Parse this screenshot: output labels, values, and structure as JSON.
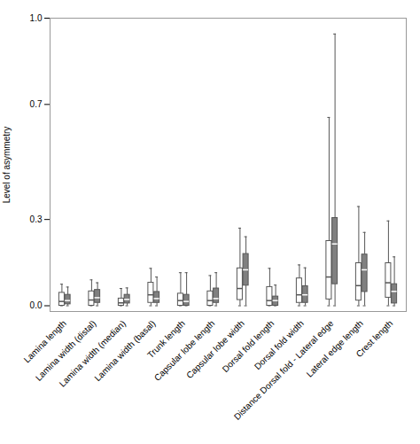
{
  "chart_data": {
    "type": "box",
    "ylabel": "Level of asymmetry",
    "categories": [
      "Lamina length",
      "Lamina width (distal)",
      "Lamina width (median)",
      "Lamina width (basal)",
      "Trunk length",
      "Capsular lobe length",
      "Capsular lobe width",
      "Dorsal fold length",
      "Dorsal fold width",
      "Distance Dorsal fold - Lateral edge",
      "Lateral edge length",
      "Crest length"
    ],
    "series": [
      {
        "color": "white",
        "values": [
          {
            "whislo": 0.0,
            "q1": 0.0,
            "med": 0.015,
            "q3": 0.045,
            "whishi": 0.075
          },
          {
            "whislo": 0.0,
            "q1": 0.0,
            "med": 0.02,
            "q3": 0.05,
            "whishi": 0.09
          },
          {
            "whislo": 0.0,
            "q1": 0.0,
            "med": 0.01,
            "q3": 0.025,
            "whishi": 0.06
          },
          {
            "whislo": 0.0,
            "q1": 0.01,
            "med": 0.038,
            "q3": 0.08,
            "whishi": 0.13
          },
          {
            "whislo": 0.0,
            "q1": 0.0,
            "med": 0.018,
            "q3": 0.042,
            "whishi": 0.115
          },
          {
            "whislo": 0.0,
            "q1": 0.0,
            "med": 0.018,
            "q3": 0.05,
            "whishi": 0.105
          },
          {
            "whislo": 0.0,
            "q1": 0.02,
            "med": 0.06,
            "q3": 0.13,
            "whishi": 0.27
          },
          {
            "whislo": 0.0,
            "q1": 0.0,
            "med": 0.018,
            "q3": 0.065,
            "whishi": 0.13
          },
          {
            "whislo": 0.0,
            "q1": 0.01,
            "med": 0.038,
            "q3": 0.095,
            "whishi": 0.142
          },
          {
            "whislo": 0.0,
            "q1": 0.022,
            "med": 0.1,
            "q3": 0.225,
            "whishi": 0.655
          },
          {
            "whislo": 0.0,
            "q1": 0.018,
            "med": 0.07,
            "q3": 0.148,
            "whishi": 0.345
          },
          {
            "whislo": 0.0,
            "q1": 0.028,
            "med": 0.08,
            "q3": 0.148,
            "whishi": 0.295
          }
        ]
      },
      {
        "color": "#808080",
        "values": [
          {
            "whislo": 0.0,
            "q1": 0.005,
            "med": 0.018,
            "q3": 0.038,
            "whishi": 0.065
          },
          {
            "whislo": 0.0,
            "q1": 0.01,
            "med": 0.028,
            "q3": 0.055,
            "whishi": 0.08
          },
          {
            "whislo": 0.0,
            "q1": 0.008,
            "med": 0.022,
            "q3": 0.038,
            "whishi": 0.062
          },
          {
            "whislo": 0.0,
            "q1": 0.01,
            "med": 0.025,
            "q3": 0.048,
            "whishi": 0.1
          },
          {
            "whislo": 0.0,
            "q1": 0.0,
            "med": 0.015,
            "q3": 0.038,
            "whishi": 0.115
          },
          {
            "whislo": 0.0,
            "q1": 0.01,
            "med": 0.025,
            "q3": 0.06,
            "whishi": 0.115
          },
          {
            "whislo": 0.0,
            "q1": 0.07,
            "med": 0.125,
            "q3": 0.18,
            "whishi": 0.24
          },
          {
            "whislo": 0.0,
            "q1": 0.0,
            "med": 0.018,
            "q3": 0.032,
            "whishi": 0.072
          },
          {
            "whislo": 0.0,
            "q1": 0.01,
            "med": 0.038,
            "q3": 0.068,
            "whishi": 0.132
          },
          {
            "whislo": 0.0,
            "q1": 0.075,
            "med": 0.215,
            "q3": 0.305,
            "whishi": 0.945
          },
          {
            "whislo": 0.0,
            "q1": 0.048,
            "med": 0.125,
            "q3": 0.178,
            "whishi": 0.255
          },
          {
            "whislo": 0.0,
            "q1": 0.008,
            "med": 0.05,
            "q3": 0.075,
            "whishi": 0.17
          }
        ]
      }
    ],
    "ylim": [
      -0.02,
      1.0
    ],
    "yticks": [
      {
        "value": 0,
        "label": "0.0"
      },
      0.3,
      0.7,
      {
        "value": 1,
        "label": "1.0"
      }
    ],
    "grid": false
  }
}
